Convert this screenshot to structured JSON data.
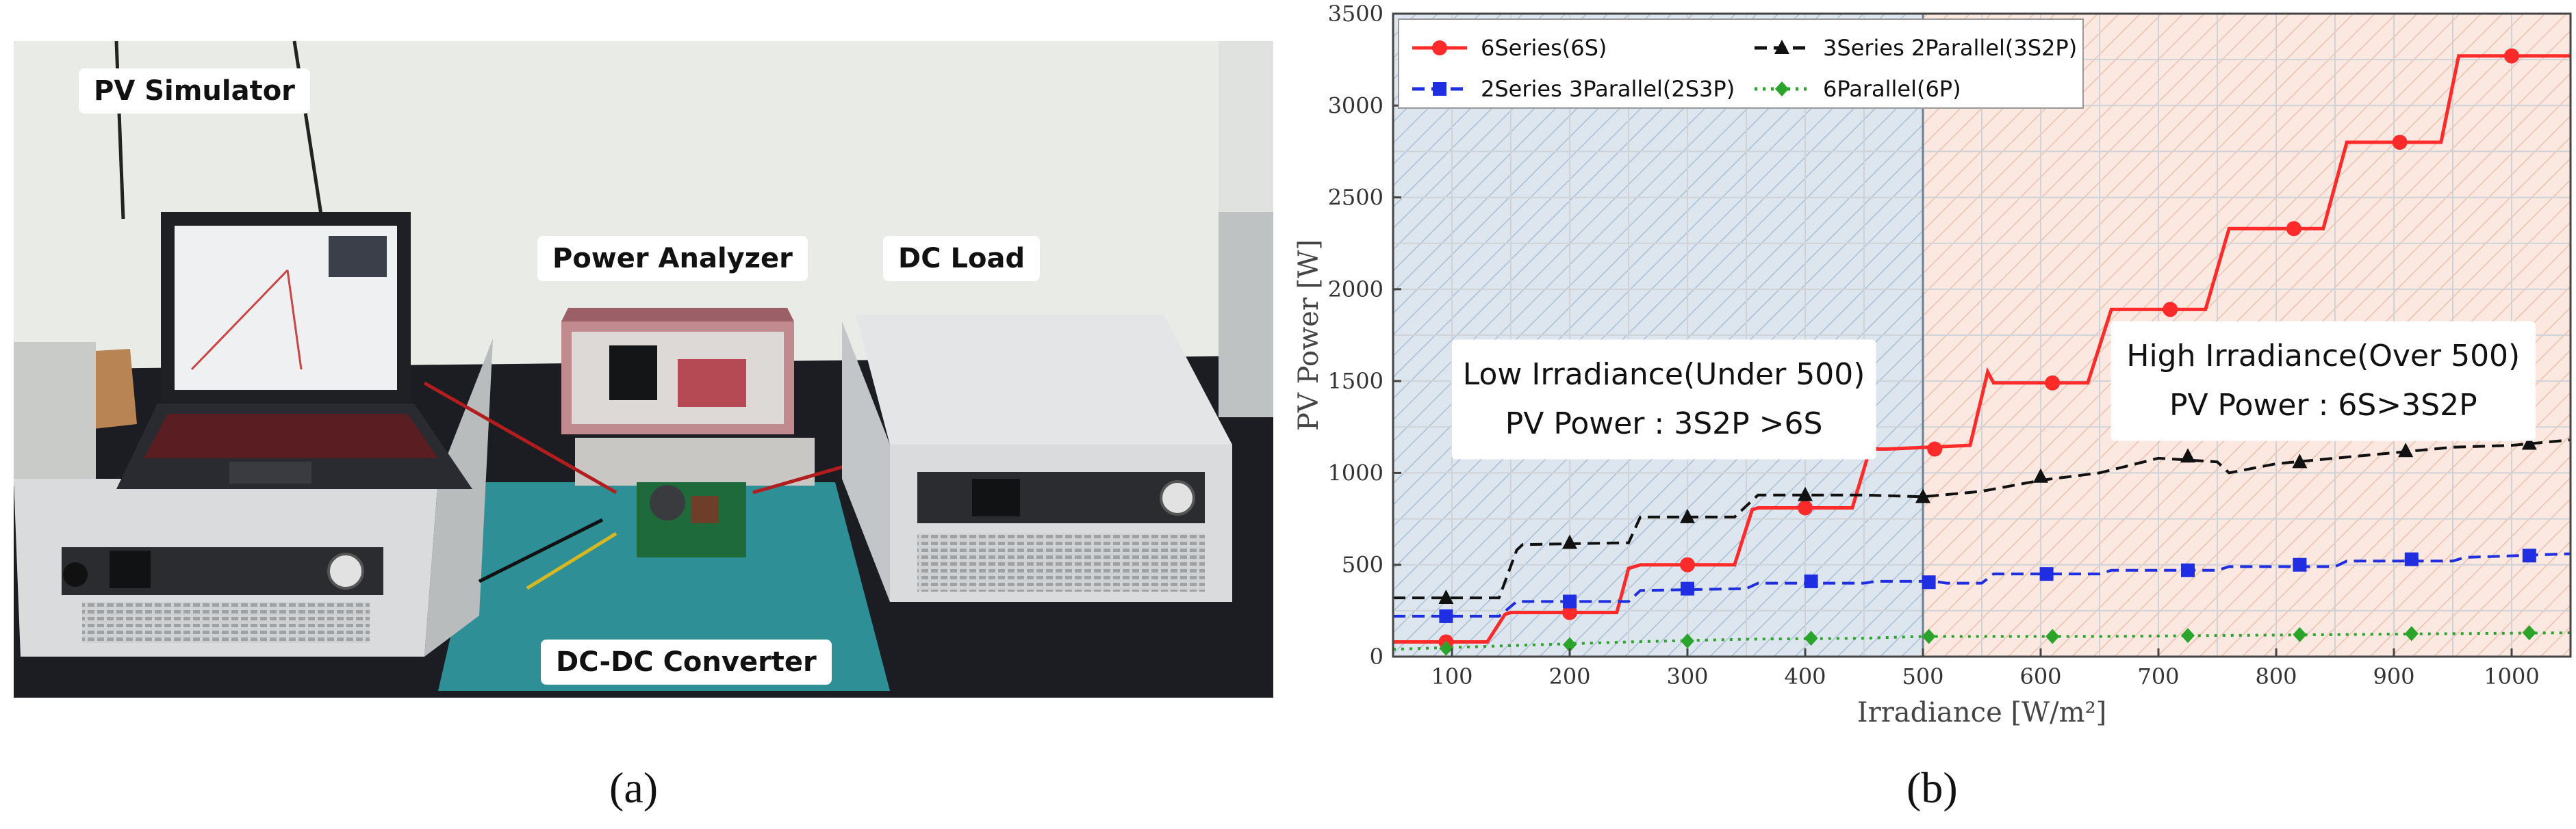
{
  "panels": {
    "a_label": "(a)",
    "b_label": "(b)"
  },
  "photo": {
    "labels": {
      "pv_simulator": "PV Simulator",
      "power_analyzer": "Power Analyzer",
      "dc_load": "DC Load",
      "dc_dc_converter": "DC-DC Converter"
    },
    "colors": {
      "wall": "#e9ebe7",
      "table": "#1b1d22",
      "mat": "#2e8f97",
      "instrument_body": "#d9dbdc",
      "analyzer_front": "#c08a8f"
    }
  },
  "chart_data": {
    "type": "line",
    "title": "",
    "xlabel": "Irradiance [W/m²]",
    "ylabel": "PV Power [W]",
    "xlim": [
      50,
      1050
    ],
    "ylim": [
      0,
      3500
    ],
    "xticks": [
      100,
      200,
      300,
      400,
      500,
      600,
      700,
      800,
      900,
      1000
    ],
    "yticks": [
      0,
      500,
      1000,
      1500,
      2000,
      2500,
      3000,
      3500
    ],
    "grid": true,
    "divider_x": 500,
    "legend": {
      "placement": "top-left",
      "entries": [
        "6Series(6S)",
        "3Series 2Parallel(3S2P)",
        "2Series 3Parallel(2S3P)",
        "6Parallel(6P)"
      ]
    },
    "regions": [
      {
        "x_range": [
          50,
          500
        ],
        "color": "#c7d6e6"
      },
      {
        "x_range": [
          500,
          1050
        ],
        "color": "#f6d6c8"
      }
    ],
    "annotations": [
      {
        "lines": [
          "Low Irradiance(Under 500)",
          "PV Power : 3S2P >6S"
        ],
        "x": 280,
        "y": 1400
      },
      {
        "lines": [
          "High Irradiance(Over 500)",
          "PV Power : 6S>3S2P"
        ],
        "x": 840,
        "y": 1500
      }
    ],
    "series": [
      {
        "name": "6Series(6S)",
        "color": "#ff2a2a",
        "style": "solid",
        "marker": "circle",
        "x": [
          50,
          130,
          145,
          150,
          240,
          250,
          260,
          340,
          355,
          360,
          440,
          455,
          470,
          540,
          555,
          560,
          640,
          660,
          740,
          760,
          840,
          860,
          940,
          955,
          1050
        ],
        "y": [
          80,
          80,
          230,
          240,
          240,
          480,
          500,
          500,
          800,
          810,
          810,
          1130,
          1130,
          1150,
          1550,
          1490,
          1490,
          1890,
          1890,
          2330,
          2330,
          2800,
          2800,
          3270,
          3270
        ],
        "marker_points": [
          [
            95,
            80
          ],
          [
            200,
            240
          ],
          [
            300,
            500
          ],
          [
            400,
            810
          ],
          [
            510,
            1130
          ],
          [
            610,
            1490
          ],
          [
            710,
            1890
          ],
          [
            815,
            2330
          ],
          [
            905,
            2800
          ],
          [
            1000,
            3270
          ]
        ]
      },
      {
        "name": "3Series 2Parallel(3S2P)",
        "color": "#111111",
        "style": "dashed",
        "marker": "triangle",
        "x": [
          50,
          140,
          155,
          160,
          250,
          260,
          300,
          340,
          360,
          450,
          500,
          550,
          600,
          650,
          700,
          750,
          760,
          800,
          850,
          900,
          950,
          1000,
          1050
        ],
        "y": [
          320,
          320,
          580,
          610,
          620,
          760,
          760,
          760,
          880,
          880,
          870,
          900,
          960,
          1000,
          1080,
          1060,
          1000,
          1050,
          1080,
          1110,
          1140,
          1150,
          1180
        ],
        "marker_points": [
          [
            95,
            320
          ],
          [
            200,
            620
          ],
          [
            300,
            760
          ],
          [
            400,
            880
          ],
          [
            500,
            870
          ],
          [
            600,
            980
          ],
          [
            725,
            1090
          ],
          [
            820,
            1060
          ],
          [
            910,
            1120
          ],
          [
            1015,
            1160
          ]
        ]
      },
      {
        "name": "2Series 3Parallel(2S3P)",
        "color": "#1f2ee0",
        "style": "dashed",
        "marker": "square",
        "x": [
          50,
          140,
          155,
          250,
          260,
          350,
          360,
          450,
          460,
          510,
          520,
          550,
          560,
          650,
          660,
          750,
          760,
          850,
          860,
          950,
          960,
          1050
        ],
        "y": [
          220,
          220,
          300,
          300,
          360,
          370,
          400,
          400,
          410,
          410,
          400,
          400,
          450,
          450,
          470,
          470,
          490,
          490,
          520,
          520,
          540,
          560
        ],
        "marker_points": [
          [
            95,
            220
          ],
          [
            200,
            300
          ],
          [
            300,
            370
          ],
          [
            405,
            410
          ],
          [
            505,
            405
          ],
          [
            605,
            450
          ],
          [
            725,
            470
          ],
          [
            820,
            500
          ],
          [
            915,
            530
          ],
          [
            1015,
            550
          ]
        ]
      },
      {
        "name": "6Parallel(6P)",
        "color": "#2aa42a",
        "style": "dotted",
        "marker": "diamond",
        "x": [
          50,
          150,
          250,
          350,
          450,
          500,
          550,
          650,
          750,
          850,
          950,
          1050
        ],
        "y": [
          40,
          60,
          80,
          95,
          100,
          110,
          110,
          110,
          115,
          120,
          125,
          130
        ],
        "marker_points": [
          [
            95,
            45
          ],
          [
            200,
            65
          ],
          [
            300,
            85
          ],
          [
            405,
            100
          ],
          [
            505,
            110
          ],
          [
            610,
            110
          ],
          [
            725,
            115
          ],
          [
            820,
            120
          ],
          [
            915,
            125
          ],
          [
            1015,
            130
          ]
        ]
      }
    ]
  }
}
